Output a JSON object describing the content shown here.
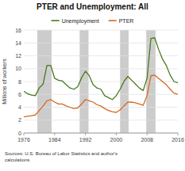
{
  "chart_data": {
    "type": "line",
    "title": "PTER and Unemployment: All",
    "y_label": "Millions of workers",
    "annotations": [
      "Sources: U.S. Bureau of Labor Statistics and author's\ncalculations"
    ],
    "x": [
      1976,
      1977,
      1978,
      1979,
      1980,
      1981,
      1982,
      1983,
      1984,
      1985,
      1986,
      1987,
      1988,
      1989,
      1990,
      1991,
      1992,
      1993,
      1994,
      1995,
      1996,
      1997,
      1998,
      1999,
      2000,
      2001,
      2002,
      2003,
      2004,
      2005,
      2006,
      2007,
      2008,
      2009,
      2010,
      2011,
      2012,
      2013,
      2014,
      2015,
      2016
    ],
    "series": [
      {
        "name": "Unemployment",
        "color": "#4a7a1e",
        "values": [
          6.5,
          6.1,
          5.9,
          5.8,
          7.0,
          7.6,
          10.5,
          10.5,
          8.5,
          8.2,
          8.1,
          7.5,
          7.0,
          6.8,
          7.2,
          8.6,
          9.6,
          8.9,
          7.5,
          7.0,
          6.8,
          5.8,
          5.5,
          5.2,
          5.8,
          6.8,
          8.0,
          8.8,
          8.2,
          7.6,
          7.0,
          6.6,
          8.5,
          14.7,
          14.8,
          13.0,
          11.5,
          10.5,
          9.0,
          8.0,
          7.8
        ]
      },
      {
        "name": "PTER",
        "color": "#d4691e",
        "values": [
          2.5,
          2.6,
          2.7,
          2.8,
          3.5,
          4.2,
          5.0,
          5.2,
          4.8,
          4.5,
          4.5,
          4.2,
          4.0,
          3.8,
          3.9,
          4.5,
          5.2,
          5.0,
          4.8,
          4.4,
          4.2,
          3.8,
          3.5,
          3.3,
          3.2,
          3.6,
          4.2,
          4.8,
          4.8,
          4.7,
          4.5,
          4.3,
          5.8,
          8.9,
          9.0,
          8.5,
          8.0,
          7.5,
          6.8,
          6.2,
          6.0
        ]
      }
    ],
    "recession_bands": {
      "color": "#cccccc",
      "values": [
        [
          1979.5,
          1983.2
        ],
        [
          1990.5,
          1992.8
        ],
        [
          2001.0,
          2003.2
        ],
        [
          2007.8,
          2010.2
        ]
      ]
    },
    "xlim": [
      1976,
      2016
    ],
    "xticks": [
      1976,
      1984,
      1992,
      2000,
      2008,
      2016
    ],
    "ylim": [
      0,
      16
    ],
    "yticks": [
      0,
      2,
      4,
      6,
      8,
      10,
      12,
      14,
      16
    ],
    "grid": true,
    "legend": "top"
  }
}
